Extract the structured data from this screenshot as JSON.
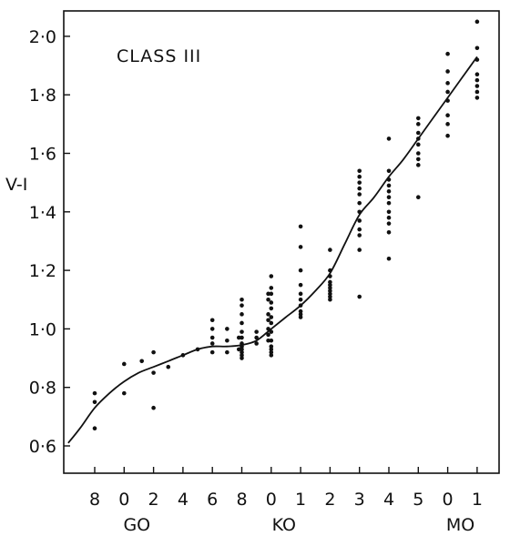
{
  "chart_data": {
    "type": "scatter",
    "title": "",
    "annotation": "CLASS III",
    "xlabel": "",
    "ylabel": "V-I",
    "ylim": [
      0.55,
      2.1
    ],
    "yticks": [
      "0.6",
      "0.8",
      "1.0",
      "1.2",
      "1.4",
      "1.6",
      "1.8",
      "2.0"
    ],
    "ytick_values": [
      0.6,
      0.8,
      1.0,
      1.2,
      1.4,
      1.6,
      1.8,
      2.0
    ],
    "xlim": [
      -0.9,
      12.9
    ],
    "x_ticks": [
      {
        "label": "8",
        "x": 0
      },
      {
        "label": "0",
        "x": 1
      },
      {
        "label": "2",
        "x": 2
      },
      {
        "label": "4",
        "x": 3
      },
      {
        "label": "6",
        "x": 4
      },
      {
        "label": "8",
        "x": 5
      },
      {
        "label": "0",
        "x": 6
      },
      {
        "label": "1",
        "x": 7
      },
      {
        "label": "2",
        "x": 8
      },
      {
        "label": "3",
        "x": 9
      },
      {
        "label": "4",
        "x": 10
      },
      {
        "label": "5",
        "x": 11
      },
      {
        "label": "0",
        "x": 12
      },
      {
        "label": "1",
        "x": 13
      }
    ],
    "spectral_groups": [
      {
        "label": "GO",
        "x": 1
      },
      {
        "label": "KO",
        "x": 6
      },
      {
        "label": "MO",
        "x": 12
      }
    ],
    "points": [
      [
        0,
        0.78
      ],
      [
        0,
        0.75
      ],
      [
        0,
        0.66
      ],
      [
        1,
        0.88
      ],
      [
        1,
        0.78
      ],
      [
        1.6,
        0.89
      ],
      [
        2,
        0.92
      ],
      [
        2,
        0.85
      ],
      [
        2,
        0.73
      ],
      [
        2.5,
        0.87
      ],
      [
        3,
        0.91
      ],
      [
        3.5,
        0.93
      ],
      [
        4,
        1.03
      ],
      [
        4,
        1.0
      ],
      [
        4,
        0.97
      ],
      [
        4,
        0.95
      ],
      [
        4,
        0.92
      ],
      [
        4.5,
        1.0
      ],
      [
        4.5,
        0.96
      ],
      [
        4.5,
        0.92
      ],
      [
        4.9,
        0.97
      ],
      [
        4.9,
        0.93
      ],
      [
        5,
        1.1
      ],
      [
        5,
        1.08
      ],
      [
        5,
        1.05
      ],
      [
        5,
        1.02
      ],
      [
        5,
        0.99
      ],
      [
        5,
        0.97
      ],
      [
        5,
        0.95
      ],
      [
        5,
        0.94
      ],
      [
        5,
        0.93
      ],
      [
        5,
        0.92
      ],
      [
        5,
        0.91
      ],
      [
        5,
        0.9
      ],
      [
        5.5,
        0.99
      ],
      [
        5.5,
        0.97
      ],
      [
        5.5,
        0.95
      ],
      [
        5.9,
        1.12
      ],
      [
        5.9,
        1.1
      ],
      [
        5.9,
        1.05
      ],
      [
        5.9,
        1.03
      ],
      [
        5.9,
        1.0
      ],
      [
        5.9,
        0.98
      ],
      [
        5.9,
        0.96
      ],
      [
        6,
        1.18
      ],
      [
        6,
        1.14
      ],
      [
        6,
        1.12
      ],
      [
        6,
        1.09
      ],
      [
        6,
        1.07
      ],
      [
        6,
        1.04
      ],
      [
        6,
        1.02
      ],
      [
        6,
        0.99
      ],
      [
        6,
        0.96
      ],
      [
        6,
        0.94
      ],
      [
        6,
        0.93
      ],
      [
        6,
        0.92
      ],
      [
        6,
        0.91
      ],
      [
        7,
        1.35
      ],
      [
        7,
        1.28
      ],
      [
        7,
        1.2
      ],
      [
        7,
        1.15
      ],
      [
        7,
        1.12
      ],
      [
        7,
        1.1
      ],
      [
        7,
        1.08
      ],
      [
        7,
        1.06
      ],
      [
        7,
        1.05
      ],
      [
        7,
        1.04
      ],
      [
        8,
        1.27
      ],
      [
        8,
        1.2
      ],
      [
        8,
        1.18
      ],
      [
        8,
        1.16
      ],
      [
        8,
        1.15
      ],
      [
        8,
        1.14
      ],
      [
        8,
        1.13
      ],
      [
        8,
        1.12
      ],
      [
        8,
        1.11
      ],
      [
        8,
        1.1
      ],
      [
        9,
        1.54
      ],
      [
        9,
        1.52
      ],
      [
        9,
        1.5
      ],
      [
        9,
        1.48
      ],
      [
        9,
        1.46
      ],
      [
        9,
        1.43
      ],
      [
        9,
        1.4
      ],
      [
        9,
        1.37
      ],
      [
        9,
        1.34
      ],
      [
        9,
        1.32
      ],
      [
        9,
        1.27
      ],
      [
        9,
        1.11
      ],
      [
        10,
        1.65
      ],
      [
        10,
        1.54
      ],
      [
        10,
        1.51
      ],
      [
        10,
        1.49
      ],
      [
        10,
        1.47
      ],
      [
        10,
        1.45
      ],
      [
        10,
        1.43
      ],
      [
        10,
        1.4
      ],
      [
        10,
        1.38
      ],
      [
        10,
        1.36
      ],
      [
        10,
        1.33
      ],
      [
        10,
        1.24
      ],
      [
        11,
        1.72
      ],
      [
        11,
        1.7
      ],
      [
        11,
        1.67
      ],
      [
        11,
        1.65
      ],
      [
        11,
        1.63
      ],
      [
        11,
        1.6
      ],
      [
        11,
        1.58
      ],
      [
        11,
        1.56
      ],
      [
        11,
        1.45
      ],
      [
        12,
        1.94
      ],
      [
        12,
        1.88
      ],
      [
        12,
        1.84
      ],
      [
        12,
        1.81
      ],
      [
        12,
        1.78
      ],
      [
        12,
        1.73
      ],
      [
        12,
        1.7
      ],
      [
        12,
        1.66
      ],
      [
        13,
        2.05
      ],
      [
        13,
        1.96
      ],
      [
        13,
        1.92
      ],
      [
        13,
        1.87
      ],
      [
        13,
        1.85
      ],
      [
        13,
        1.83
      ],
      [
        13,
        1.81
      ],
      [
        13,
        1.79
      ]
    ],
    "curve": [
      [
        -0.9,
        0.61
      ],
      [
        -0.5,
        0.66
      ],
      [
        0,
        0.73
      ],
      [
        0.5,
        0.78
      ],
      [
        1,
        0.82
      ],
      [
        1.5,
        0.85
      ],
      [
        2,
        0.87
      ],
      [
        2.5,
        0.89
      ],
      [
        3,
        0.91
      ],
      [
        3.5,
        0.93
      ],
      [
        4,
        0.94
      ],
      [
        4.5,
        0.94
      ],
      [
        5,
        0.945
      ],
      [
        5.5,
        0.96
      ],
      [
        6,
        1.0
      ],
      [
        6.5,
        1.04
      ],
      [
        7,
        1.08
      ],
      [
        7.5,
        1.13
      ],
      [
        8,
        1.19
      ],
      [
        8.5,
        1.29
      ],
      [
        9,
        1.39
      ],
      [
        9.5,
        1.45
      ],
      [
        10,
        1.52
      ],
      [
        10.5,
        1.58
      ],
      [
        11,
        1.65
      ],
      [
        11.5,
        1.72
      ],
      [
        12,
        1.79
      ],
      [
        12.5,
        1.86
      ],
      [
        13,
        1.93
      ]
    ]
  }
}
